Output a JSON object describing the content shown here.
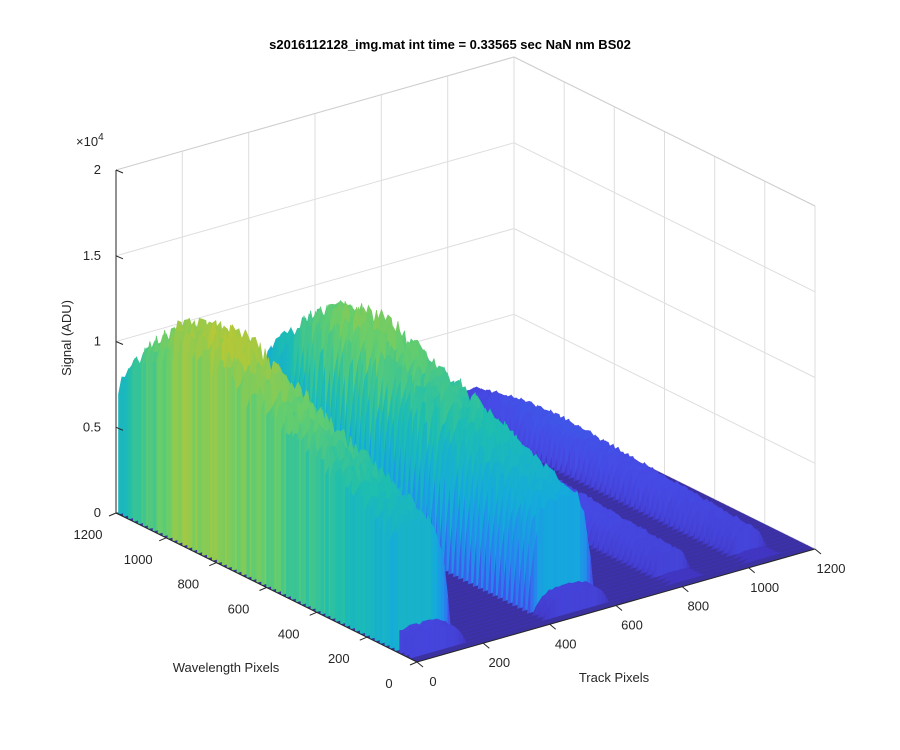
{
  "chart_data": {
    "type": "surface",
    "title": "s2016112128_img.mat int time = 0.33565 sec  NaN nm BS02",
    "xlabel": "Track Pixels",
    "ylabel": "Wavelength Pixels",
    "zlabel": "Signal (ADU)",
    "z_exponent": "×10",
    "z_exponent_power": "4",
    "xlim": [
      0,
      1200
    ],
    "ylim": [
      0,
      1200
    ],
    "zlim": [
      0,
      20000
    ],
    "x_ticks": [
      "0",
      "200",
      "400",
      "600",
      "800",
      "1000",
      "1200"
    ],
    "y_ticks": [
      "0",
      "200",
      "400",
      "600",
      "800",
      "1000",
      "1200"
    ],
    "z_ticks": [
      "0",
      "0.5",
      "1",
      "1.5",
      "2"
    ],
    "z_tick_values": [
      0,
      5000,
      10000,
      15000,
      20000
    ],
    "tick_values": [
      0,
      200,
      400,
      600,
      800,
      1000,
      1200
    ],
    "grid": true,
    "colormap": "parula",
    "colors": {
      "low": "#3e26a8",
      "mid": "#1fb3a2",
      "high": "#f9d22e"
    },
    "features": [
      {
        "name": "peak",
        "track_center": 60,
        "track_width": 220,
        "peak_signal": 17000
      },
      {
        "name": "peak",
        "track_center": 500,
        "track_width": 200,
        "peak_signal": 15000
      },
      {
        "name": "peak",
        "track_center": 830,
        "track_width": 110,
        "peak_signal": 3000
      },
      {
        "name": "peak",
        "track_center": 1060,
        "track_width": 110,
        "peak_signal": 3000
      }
    ]
  }
}
